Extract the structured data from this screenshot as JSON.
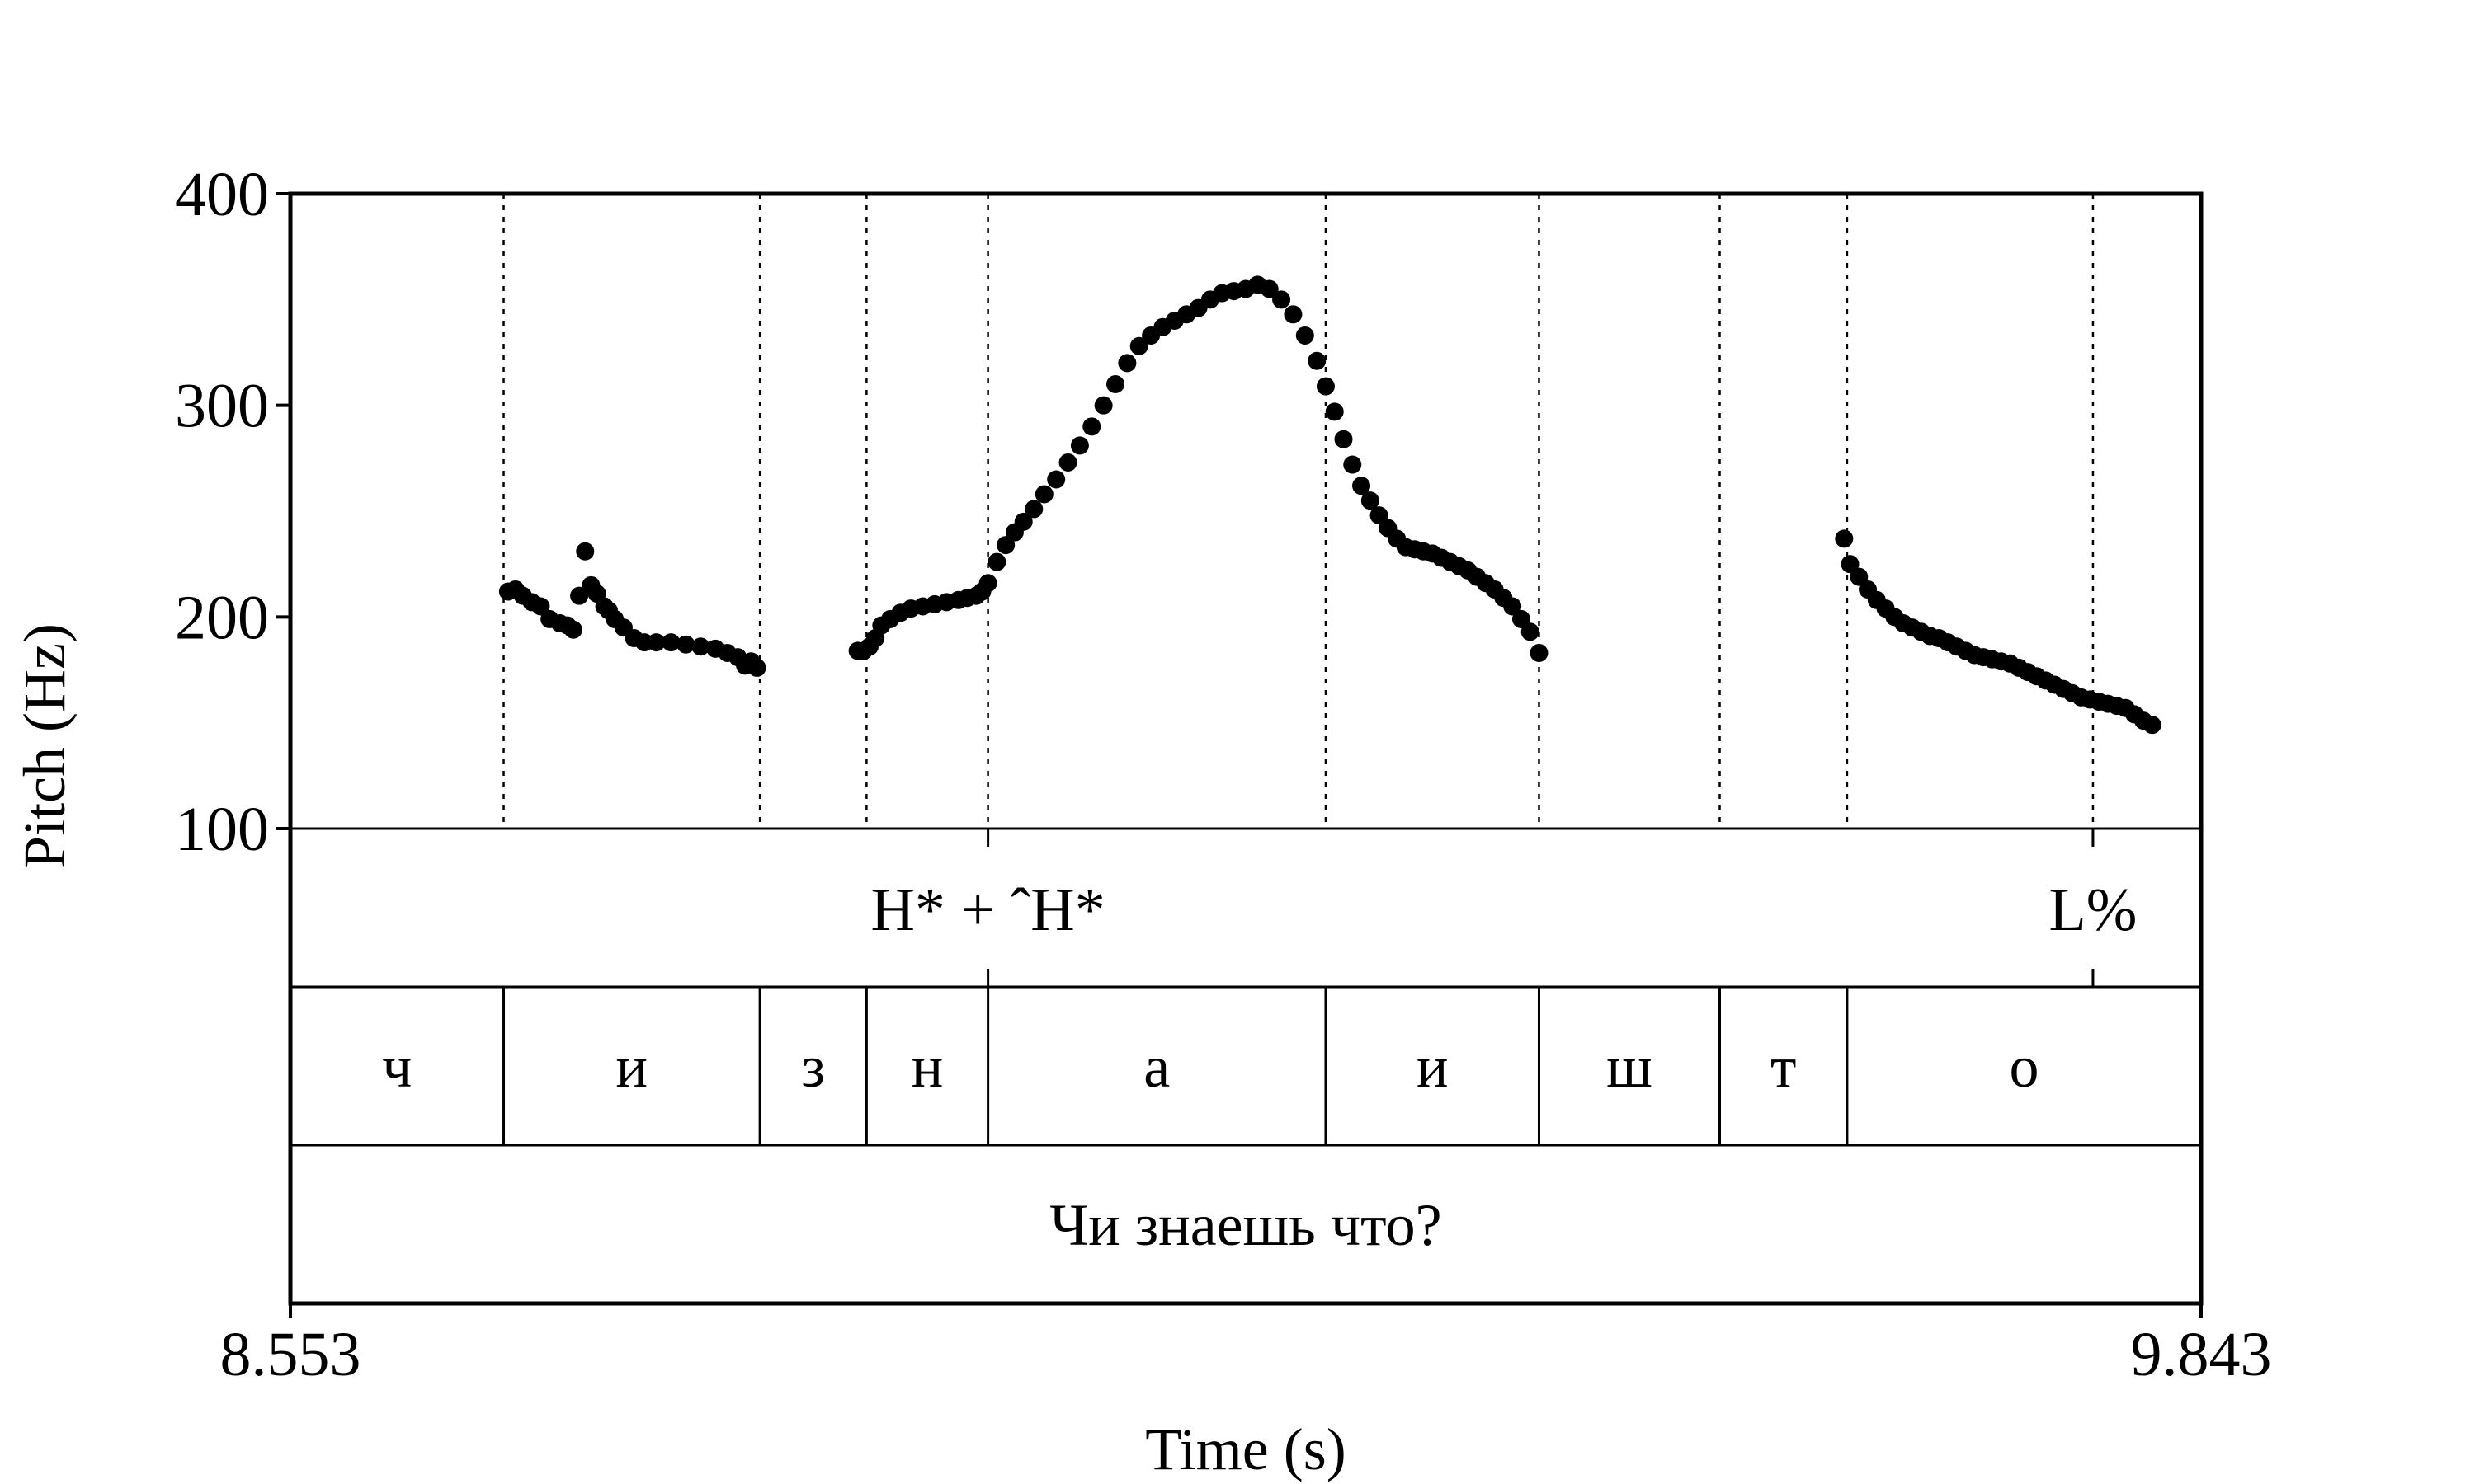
{
  "chart_data": {
    "type": "scatter",
    "title": "",
    "xlabel": "Time (s)",
    "ylabel": "Pitch (Hz)",
    "xlim": [
      8.553,
      9.843
    ],
    "ylim": [
      100,
      400
    ],
    "x_tick_labels": [
      "8.553",
      "9.843"
    ],
    "y_ticks": [
      100,
      200,
      300,
      400
    ],
    "y_tick_labels": [
      "100",
      "200",
      "300",
      "400"
    ],
    "grid": false,
    "legend": "none",
    "point_color": "#000000",
    "segment_boundaries": [
      8.697,
      8.87,
      8.942,
      9.024,
      9.252,
      9.396,
      9.518,
      9.604,
      9.77
    ],
    "series": [
      {
        "x": [
          8.7,
          8.705,
          8.71,
          8.716,
          8.722,
          8.728,
          8.735,
          8.74,
          8.744,
          8.748,
          8.752,
          8.756,
          8.76,
          8.765,
          8.768,
          8.772,
          8.778,
          8.785,
          8.792,
          8.8,
          8.81,
          8.82,
          8.83,
          8.84,
          8.848,
          8.855,
          8.86,
          8.864,
          8.868
        ],
        "y": [
          212,
          213,
          210,
          207,
          205,
          199,
          197,
          196,
          194,
          210,
          231,
          215,
          211,
          205,
          203,
          199,
          195,
          190,
          188,
          188,
          188,
          187,
          186,
          185,
          183,
          181,
          177,
          179,
          176
        ]
      },
      {
        "x": [
          8.936,
          8.94,
          8.944,
          8.948,
          8.952,
          8.958,
          8.965,
          8.972,
          8.98,
          8.988,
          8.996,
          9.004,
          9.01,
          9.016,
          9.02,
          9.024,
          9.03,
          9.036,
          9.042,
          9.048,
          9.055,
          9.062,
          9.07,
          9.078,
          9.086,
          9.094,
          9.102,
          9.11,
          9.118,
          9.126,
          9.134,
          9.142,
          9.15,
          9.158,
          9.166,
          9.174,
          9.182,
          9.19,
          9.198,
          9.206,
          9.214,
          9.222,
          9.23,
          9.238,
          9.246,
          9.252,
          9.258,
          9.264,
          9.27,
          9.276,
          9.282,
          9.288,
          9.294,
          9.3,
          9.306,
          9.312,
          9.318,
          9.324,
          9.33,
          9.336,
          9.342,
          9.348,
          9.354,
          9.36,
          9.366,
          9.372,
          9.378,
          9.384,
          9.39,
          9.396
        ],
        "y": [
          184,
          184,
          186,
          190,
          196,
          199,
          202,
          204,
          205,
          206,
          207,
          208,
          209,
          210,
          212,
          216,
          226,
          234,
          240,
          245,
          251,
          258,
          265,
          273,
          281,
          290,
          300,
          310,
          320,
          328,
          333,
          337,
          340,
          343,
          346,
          350,
          353,
          354,
          355,
          357,
          355,
          350,
          343,
          333,
          321,
          309,
          297,
          284,
          272,
          262,
          255,
          248,
          242,
          237,
          233,
          232,
          231,
          230,
          228,
          226,
          224,
          222,
          219,
          216,
          213,
          209,
          205,
          199,
          193,
          183
        ]
      },
      {
        "x": [
          9.602,
          9.606,
          9.612,
          9.618,
          9.624,
          9.63,
          9.636,
          9.642,
          9.648,
          9.654,
          9.66,
          9.666,
          9.672,
          9.678,
          9.684,
          9.69,
          9.696,
          9.702,
          9.708,
          9.714,
          9.72,
          9.726,
          9.732,
          9.738,
          9.744,
          9.75,
          9.756,
          9.762,
          9.768,
          9.774,
          9.78,
          9.786,
          9.792,
          9.798,
          9.804,
          9.81
        ],
        "y": [
          237,
          225,
          219,
          213,
          208,
          204,
          200,
          197,
          195,
          193,
          191,
          190,
          188,
          186,
          184,
          182,
          181,
          180,
          179,
          178,
          176,
          174,
          172,
          170,
          168,
          166,
          164,
          162,
          161,
          160,
          159,
          158,
          157,
          154,
          151,
          149
        ]
      }
    ]
  },
  "tiers": [
    {
      "name": "tones",
      "boundaries": [
        9.024,
        9.77
      ],
      "labels": [
        {
          "text": "H* + ˆH*",
          "x": 9.024
        },
        {
          "text": "L%",
          "x": 9.77
        }
      ]
    },
    {
      "name": "segments",
      "boundaries": [
        8.697,
        8.87,
        8.942,
        9.024,
        9.252,
        9.396,
        9.518,
        9.604
      ],
      "intervals": [
        {
          "text": "ч",
          "start": 8.553,
          "end": 8.697
        },
        {
          "text": "и",
          "start": 8.697,
          "end": 8.87
        },
        {
          "text": "з",
          "start": 8.87,
          "end": 8.942
        },
        {
          "text": "н",
          "start": 8.942,
          "end": 9.024
        },
        {
          "text": "а",
          "start": 9.024,
          "end": 9.252
        },
        {
          "text": "и",
          "start": 9.252,
          "end": 9.396
        },
        {
          "text": "ш",
          "start": 9.396,
          "end": 9.518
        },
        {
          "text": "т",
          "start": 9.518,
          "end": 9.604
        },
        {
          "text": "о",
          "start": 9.604,
          "end": 9.843
        }
      ]
    },
    {
      "name": "sentence",
      "intervals": [
        {
          "text": "Чи знаешь что?",
          "start": 8.553,
          "end": 9.843
        }
      ]
    }
  ]
}
